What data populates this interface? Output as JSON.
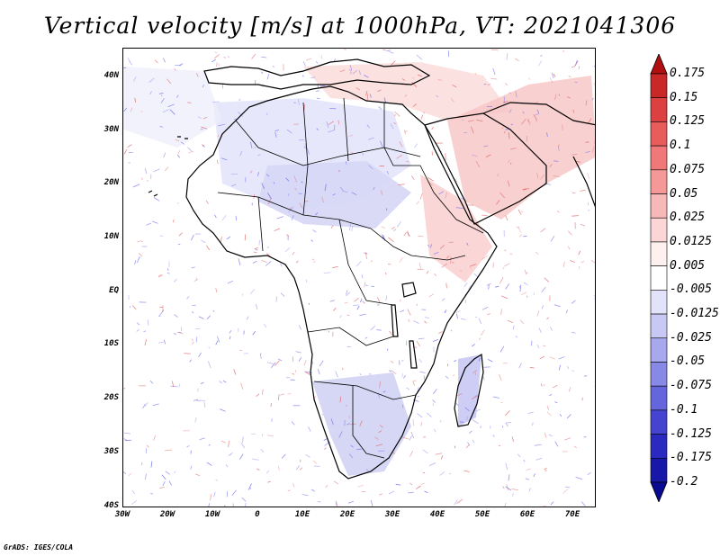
{
  "title": "Vertical velocity [m/s] at 1000hPa, VT: 2021041306",
  "credit": "GrADS: IGES/COLA",
  "map": {
    "region": "Africa",
    "variable": "vertical velocity",
    "level": "1000hPa",
    "valid_time": "2021041306",
    "units": "m/s",
    "lon_range": [
      -30,
      75
    ],
    "lat_range": [
      -40,
      45
    ],
    "lat_labels": [
      "40N",
      "30N",
      "20N",
      "10N",
      "EQ",
      "10S",
      "20S",
      "30S",
      "40S"
    ],
    "lon_labels": [
      "30W",
      "20W",
      "10W",
      "0",
      "10E",
      "20E",
      "30E",
      "40E",
      "50E",
      "60E",
      "70E"
    ],
    "coastline_color": "#000000",
    "positive_color": "#e06060",
    "negative_color": "#6666ee"
  },
  "colorbar": {
    "labels": [
      "0.175",
      "0.15",
      "0.125",
      "0.1",
      "0.075",
      "0.05",
      "0.025",
      "0.0125",
      "0.005",
      "-0.005",
      "-0.0125",
      "-0.025",
      "-0.05",
      "-0.075",
      "-0.1",
      "-0.125",
      "-0.175",
      "-0.2"
    ],
    "colors": [
      "#b01010",
      "#c82828",
      "#dc4040",
      "#e85c5c",
      "#f07878",
      "#f59898",
      "#f9b8b8",
      "#fcd6d6",
      "#fff0f0",
      "#ffffff",
      "#e2e2fa",
      "#c8c8f4",
      "#a8a8ee",
      "#8888e6",
      "#6666dc",
      "#4444d0",
      "#2a2ac0",
      "#1818a8",
      "#0a0a90"
    ]
  }
}
